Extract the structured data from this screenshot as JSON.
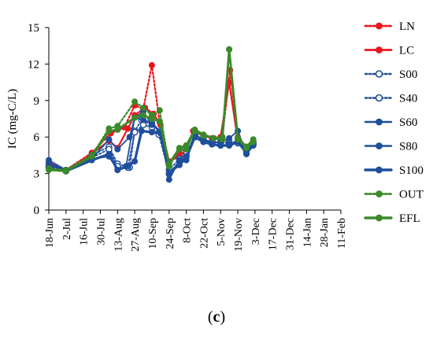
{
  "panel_label": {
    "open": "(",
    "letter": "c",
    "close": ")"
  },
  "chart_data": {
    "type": "line",
    "title": "",
    "xlabel": "",
    "ylabel": "IC (mg-C/L)",
    "ylim": [
      0,
      15
    ],
    "yticks": [
      0,
      3,
      6,
      9,
      12,
      15
    ],
    "categories": [
      "18-Jun",
      "2-Jul",
      "16-Jul",
      "30-Jul",
      "13-Aug",
      "27-Aug",
      "10-Sep",
      "24-Sep",
      "8-Oct",
      "22-Oct",
      "5-Nov",
      "19-Nov",
      "3-Dec",
      "17-Dec",
      "31-Dec",
      "14-Jan",
      "28-Jan",
      "11-Feb"
    ],
    "grid": false,
    "legend_position": "right",
    "series": [
      {
        "name": "LN",
        "color": "#e8171f",
        "dash": "dotted",
        "marker": "filled",
        "width": 2.2,
        "points": [
          [
            0,
            3.9
          ],
          [
            1.0,
            3.3
          ],
          [
            2.5,
            4.7
          ],
          [
            3.6,
            6.3
          ],
          [
            4.4,
            6.8
          ],
          [
            5.0,
            8.6
          ],
          [
            5.5,
            8.3
          ],
          [
            6.0,
            11.9
          ],
          [
            6.45,
            7.2
          ],
          [
            7.0,
            3.9
          ],
          [
            7.6,
            4.6
          ],
          [
            8.0,
            5.3
          ],
          [
            8.5,
            6.5
          ],
          [
            9.0,
            6.1
          ],
          [
            9.6,
            5.9
          ],
          [
            10.1,
            6.0
          ],
          [
            10.55,
            11.5
          ],
          [
            11.0,
            6.0
          ],
          [
            11.5,
            5.2
          ],
          [
            11.9,
            5.7
          ]
        ]
      },
      {
        "name": "LC",
        "color": "#e8171f",
        "dash": "solid",
        "marker": "filled",
        "width": 2.2,
        "points": [
          [
            0,
            3.9
          ],
          [
            1.0,
            3.3
          ],
          [
            2.5,
            4.6
          ],
          [
            3.5,
            5.7
          ],
          [
            4.0,
            5.1
          ],
          [
            4.6,
            6.7
          ],
          [
            5.0,
            7.8
          ],
          [
            5.6,
            8.4
          ],
          [
            6.1,
            7.9
          ],
          [
            6.5,
            7.0
          ],
          [
            7.0,
            4.0
          ],
          [
            7.6,
            4.4
          ],
          [
            8.0,
            5.0
          ],
          [
            8.4,
            6.5
          ],
          [
            9.0,
            6.1
          ],
          [
            9.5,
            5.9
          ],
          [
            10.0,
            6.0
          ],
          [
            10.5,
            10.5
          ],
          [
            11.0,
            5.7
          ],
          [
            11.5,
            5.1
          ],
          [
            11.9,
            5.6
          ]
        ]
      },
      {
        "name": "S00",
        "color": "#1f4e9c",
        "dash": "dotted",
        "marker": "open",
        "width": 1.8,
        "points": [
          [
            0,
            3.5
          ],
          [
            1.0,
            3.2
          ],
          [
            2.5,
            4.5
          ],
          [
            3.5,
            5.2
          ],
          [
            4.0,
            3.8
          ],
          [
            4.7,
            3.5
          ],
          [
            5.0,
            6.5
          ],
          [
            5.4,
            7.4
          ],
          [
            6.0,
            7.0
          ],
          [
            6.45,
            6.5
          ],
          [
            7.0,
            3.3
          ],
          [
            7.6,
            4.2
          ],
          [
            8.0,
            4.6
          ],
          [
            8.5,
            6.2
          ],
          [
            9.0,
            5.8
          ],
          [
            9.5,
            5.6
          ],
          [
            10.0,
            5.6
          ],
          [
            10.5,
            5.6
          ],
          [
            11.0,
            5.6
          ],
          [
            11.5,
            5.0
          ],
          [
            11.9,
            5.5
          ]
        ]
      },
      {
        "name": "S40",
        "color": "#1f4e9c",
        "dash": "dotted",
        "marker": "open",
        "width": 1.8,
        "points": [
          [
            0,
            3.6
          ],
          [
            1.0,
            3.2
          ],
          [
            2.5,
            4.3
          ],
          [
            3.5,
            5.0
          ],
          [
            4.0,
            3.6
          ],
          [
            4.6,
            3.5
          ],
          [
            5.0,
            6.4
          ],
          [
            5.5,
            7.0
          ],
          [
            6.0,
            6.8
          ],
          [
            6.4,
            6.2
          ],
          [
            7.0,
            3.0
          ],
          [
            7.6,
            4.0
          ],
          [
            8.0,
            4.4
          ],
          [
            8.5,
            6.0
          ],
          [
            9.0,
            5.7
          ],
          [
            9.5,
            5.6
          ],
          [
            10.0,
            5.5
          ],
          [
            10.5,
            5.5
          ],
          [
            11.0,
            5.5
          ],
          [
            11.5,
            4.9
          ],
          [
            11.9,
            5.4
          ]
        ]
      },
      {
        "name": "S60",
        "color": "#1f4e9c",
        "dash": "solid",
        "marker": "filled",
        "width": 1.8,
        "points": [
          [
            0,
            4.1
          ],
          [
            1.0,
            3.3
          ],
          [
            2.5,
            4.2
          ],
          [
            3.5,
            5.8
          ],
          [
            4.0,
            5.0
          ],
          [
            4.7,
            6.0
          ],
          [
            5.0,
            7.6
          ],
          [
            5.5,
            8.1
          ],
          [
            6.0,
            7.0
          ],
          [
            6.5,
            6.4
          ],
          [
            7.0,
            2.5
          ],
          [
            7.6,
            4.1
          ],
          [
            8.0,
            4.1
          ],
          [
            8.5,
            6.3
          ],
          [
            9.0,
            5.7
          ],
          [
            9.5,
            5.5
          ],
          [
            10.0,
            5.6
          ],
          [
            10.5,
            5.9
          ],
          [
            11.0,
            6.5
          ],
          [
            11.5,
            4.6
          ],
          [
            11.9,
            5.6
          ]
        ]
      },
      {
        "name": "S80",
        "color": "#1f4e9c",
        "dash": "solid",
        "marker": "filled",
        "width": 1.8,
        "points": [
          [
            0,
            3.8
          ],
          [
            1.0,
            3.2
          ],
          [
            2.5,
            4.2
          ],
          [
            3.5,
            4.4
          ],
          [
            4.0,
            3.3
          ],
          [
            4.5,
            3.6
          ],
          [
            5.0,
            7.6
          ],
          [
            5.5,
            7.4
          ],
          [
            6.0,
            7.2
          ],
          [
            6.5,
            6.4
          ],
          [
            7.0,
            2.9
          ],
          [
            7.6,
            4.0
          ],
          [
            8.0,
            4.4
          ],
          [
            8.5,
            6.0
          ],
          [
            9.0,
            5.6
          ],
          [
            9.5,
            5.4
          ],
          [
            10.0,
            5.3
          ],
          [
            10.5,
            5.4
          ],
          [
            11.0,
            5.6
          ],
          [
            11.5,
            4.7
          ],
          [
            11.9,
            5.4
          ]
        ]
      },
      {
        "name": "S100",
        "color": "#1f4e9c",
        "dash": "solid",
        "marker": "filled",
        "width": 3.2,
        "points": [
          [
            0,
            3.8
          ],
          [
            1.0,
            3.2
          ],
          [
            2.5,
            4.1
          ],
          [
            3.5,
            4.6
          ],
          [
            4.0,
            3.3
          ],
          [
            4.6,
            3.6
          ],
          [
            5.0,
            4.0
          ],
          [
            5.4,
            6.5
          ],
          [
            6.0,
            6.4
          ],
          [
            6.5,
            6.3
          ],
          [
            7.0,
            3.1
          ],
          [
            7.6,
            3.7
          ],
          [
            8.0,
            4.3
          ],
          [
            8.5,
            6.0
          ],
          [
            9.0,
            5.6
          ],
          [
            9.5,
            5.4
          ],
          [
            10.0,
            5.3
          ],
          [
            10.5,
            5.3
          ],
          [
            11.0,
            5.6
          ],
          [
            11.5,
            4.7
          ],
          [
            11.9,
            5.3
          ]
        ]
      },
      {
        "name": "OUT",
        "color": "#3a8a2a",
        "dash": "dotted",
        "marker": "filled",
        "width": 2.2,
        "points": [
          [
            0,
            3.4
          ],
          [
            1.0,
            3.3
          ],
          [
            2.5,
            4.5
          ],
          [
            3.5,
            6.7
          ],
          [
            4.0,
            6.9
          ],
          [
            5.0,
            8.9
          ],
          [
            5.5,
            8.4
          ],
          [
            6.0,
            7.8
          ],
          [
            6.45,
            8.2
          ],
          [
            7.0,
            3.6
          ],
          [
            7.6,
            5.0
          ],
          [
            8.0,
            5.0
          ],
          [
            8.5,
            6.5
          ],
          [
            9.0,
            6.1
          ],
          [
            9.6,
            5.9
          ],
          [
            10.1,
            6.0
          ],
          [
            10.5,
            13.2
          ],
          [
            11.0,
            5.8
          ],
          [
            11.5,
            5.1
          ],
          [
            11.9,
            5.6
          ]
        ]
      },
      {
        "name": "EFL",
        "color": "#3a8a2a",
        "dash": "solid",
        "marker": "filled",
        "width": 2.8,
        "points": [
          [
            0,
            3.3
          ],
          [
            1.0,
            3.2
          ],
          [
            2.5,
            4.4
          ],
          [
            3.5,
            6.5
          ],
          [
            4.0,
            6.6
          ],
          [
            5.0,
            7.6
          ],
          [
            5.5,
            7.8
          ],
          [
            6.0,
            7.5
          ],
          [
            6.45,
            7.3
          ],
          [
            7.0,
            3.8
          ],
          [
            7.6,
            5.1
          ],
          [
            8.0,
            5.3
          ],
          [
            8.5,
            6.6
          ],
          [
            9.0,
            6.2
          ],
          [
            9.6,
            5.9
          ],
          [
            10.1,
            5.8
          ],
          [
            10.5,
            13.2
          ],
          [
            11.0,
            5.9
          ],
          [
            11.5,
            5.2
          ],
          [
            11.9,
            5.8
          ]
        ]
      }
    ]
  }
}
